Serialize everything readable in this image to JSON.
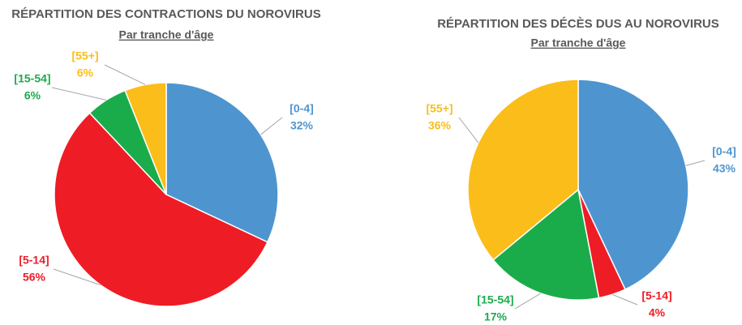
{
  "chart_data": [
    {
      "type": "pie",
      "title": "RÉPARTITION DES CONTRACTIONS DU NOROVIRUS",
      "subtitle": "Par tranche d'âge",
      "categories": [
        "[0-4]",
        "[5-14]",
        "[15-54]",
        "[55+]"
      ],
      "values": [
        32,
        56,
        6,
        6
      ],
      "value_labels": [
        "32%",
        "56%",
        "6%",
        "6%"
      ],
      "colors": [
        "#4e95d0",
        "#ee1c25",
        "#1aac4b",
        "#fbbd19"
      ]
    },
    {
      "type": "pie",
      "title": "RÉPARTITION DES DÉCÈS DUS AU NOROVIRUS",
      "subtitle": "Par tranche d'âge",
      "categories": [
        "[0-4]",
        "[5-14]",
        "[15-54]",
        "[55+]"
      ],
      "values": [
        43,
        4,
        17,
        36
      ],
      "value_labels": [
        "43%",
        "4%",
        "17%",
        "36%"
      ],
      "colors": [
        "#4e95d0",
        "#ee1c25",
        "#1aac4b",
        "#fbbd19"
      ]
    }
  ]
}
